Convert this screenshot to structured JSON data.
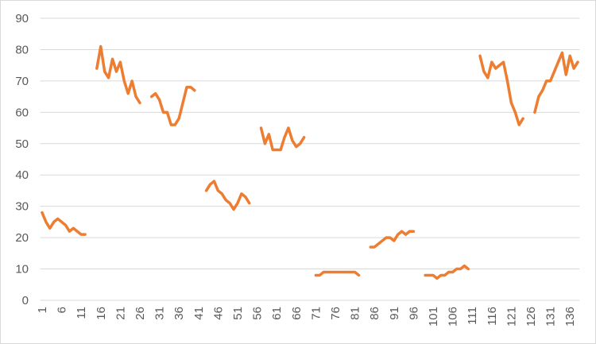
{
  "chart_data": {
    "type": "line",
    "categories": [
      "1",
      null,
      null,
      null,
      null,
      "6",
      null,
      null,
      null,
      null,
      "11",
      null,
      null,
      null,
      null,
      "16",
      null,
      null,
      null,
      null,
      "21",
      null,
      null,
      null,
      null,
      "26",
      null,
      null,
      null,
      null,
      "31",
      null,
      null,
      null,
      null,
      "36",
      null,
      null,
      null,
      null,
      "41",
      null,
      null,
      null,
      null,
      "46",
      null,
      null,
      null,
      null,
      "51",
      null,
      null,
      null,
      null,
      "56",
      null,
      null,
      null,
      null,
      "61",
      null,
      null,
      null,
      null,
      "66",
      null,
      null,
      null,
      null,
      "71",
      null,
      null,
      null,
      null,
      "76",
      null,
      null,
      null,
      null,
      "81",
      null,
      null,
      null,
      null,
      "86",
      null,
      null,
      null,
      null,
      "91",
      null,
      null,
      null,
      null,
      "96",
      null,
      null,
      null,
      null,
      "101",
      null,
      null,
      null,
      null,
      "106",
      null,
      null,
      null,
      null,
      "111",
      null,
      null,
      null,
      null,
      "116",
      null,
      null,
      null,
      null,
      "121",
      null,
      null,
      null,
      null,
      "126",
      null,
      null,
      null,
      null,
      "131",
      null,
      null,
      null,
      null,
      "136",
      null,
      null
    ],
    "values": [
      28,
      25,
      23,
      25,
      26,
      25,
      24,
      22,
      23,
      22,
      21,
      21,
      null,
      null,
      74,
      81,
      73,
      71,
      77,
      73,
      76,
      70,
      66,
      70,
      65,
      63,
      null,
      null,
      65,
      66,
      64,
      60,
      60,
      56,
      56,
      58,
      63,
      68,
      68,
      67,
      null,
      null,
      35,
      37,
      38,
      35,
      34,
      32,
      31,
      29,
      31,
      34,
      33,
      31,
      null,
      null,
      55,
      50,
      53,
      48,
      48,
      48,
      52,
      55,
      51,
      49,
      50,
      52,
      null,
      null,
      8,
      8,
      9,
      9,
      9,
      9,
      9,
      9,
      9,
      9,
      9,
      8,
      null,
      null,
      17,
      17,
      18,
      19,
      20,
      20,
      19,
      21,
      22,
      21,
      22,
      22,
      null,
      null,
      8,
      8,
      8,
      7,
      8,
      8,
      9,
      9,
      10,
      10,
      11,
      10,
      null,
      null,
      78,
      73,
      71,
      76,
      74,
      75,
      76,
      70,
      63,
      60,
      56,
      58,
      null,
      null,
      60,
      65,
      67,
      70,
      70,
      73,
      76,
      79,
      72,
      78,
      74,
      76
    ],
    "color": "#ed7d31",
    "ylim": [
      0,
      90
    ],
    "yticks": [
      0,
      10,
      20,
      30,
      40,
      50,
      60,
      70,
      80,
      90
    ],
    "grid": true
  }
}
